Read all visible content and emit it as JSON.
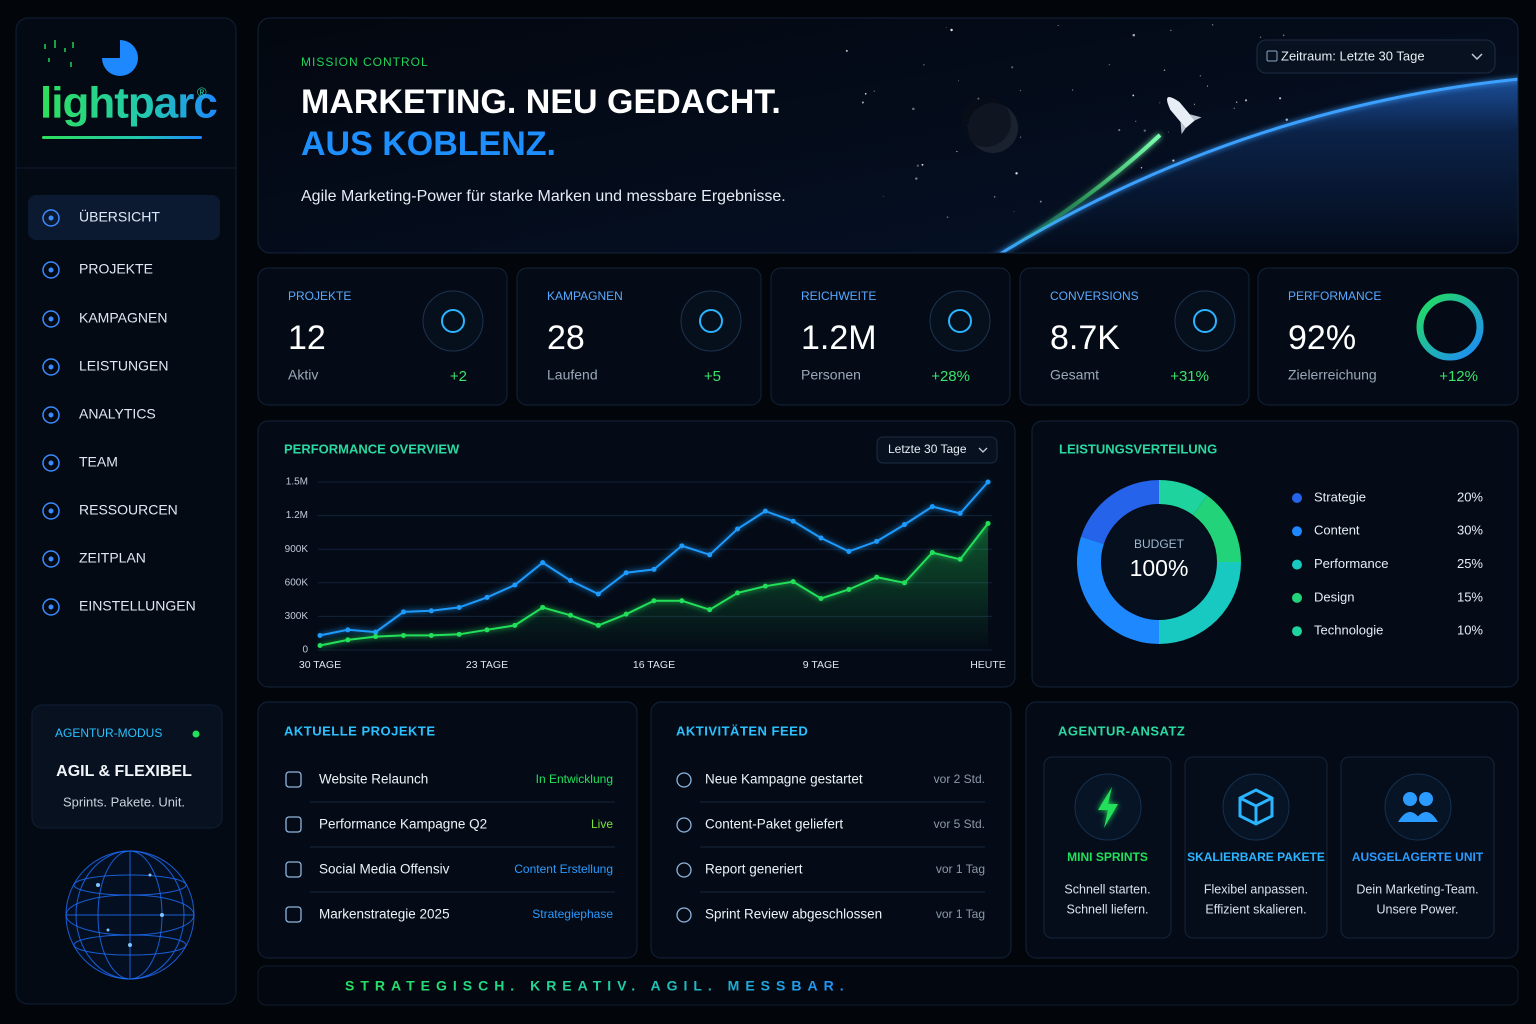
{
  "sidebar": {
    "logo": "lightparc",
    "logo_mark": "®",
    "nav": [
      "ÜBERSICHT",
      "PROJEKTE",
      "KAMPAGNEN",
      "LEISTUNGEN",
      "ANALYTICS",
      "TEAM",
      "RESSOURCEN",
      "ZEITPLAN",
      "EINSTELLUNGEN"
    ],
    "mode": {
      "label": "AGENTUR-MODUS",
      "title": "AGIL & FLEXIBEL",
      "text": "Sprints. Pakete. Unit."
    }
  },
  "hero": {
    "eyebrow": "MISSION CONTROL",
    "title_line1": "MARKETING. NEU GEDACHT.",
    "title_line2": "AUS KOBLENZ.",
    "subtitle": "Agile Marketing-Power für starke Marken und messbare Ergebnisse.",
    "date_filter": "Zeitraum: Letzte 30 Tage"
  },
  "kpis": [
    {
      "label": "PROJEKTE",
      "value": "12",
      "caption": "Aktiv",
      "delta": "+2"
    },
    {
      "label": "KAMPAGNEN",
      "value": "28",
      "caption": "Laufend",
      "delta": "+5"
    },
    {
      "label": "REICHWEITE",
      "value": "1.2M",
      "caption": "Personen",
      "delta": "+28%"
    },
    {
      "label": "CONVERSIONS",
      "value": "8.7K",
      "caption": "Gesamt",
      "delta": "+31%"
    },
    {
      "label": "PERFORMANCE",
      "value": "92%",
      "caption": "Zielerreichung",
      "delta": "+12%"
    }
  ],
  "performance_chart": {
    "type": "line",
    "title": "PERFORMANCE OVERVIEW",
    "filter": "Letzte 30 Tage",
    "categories": [
      "30 TAGE",
      null,
      null,
      null,
      null,
      null,
      "23 TAGE",
      null,
      null,
      null,
      null,
      null,
      "16 TAGE",
      null,
      null,
      null,
      null,
      null,
      "9 TAGE",
      null,
      null,
      null,
      null,
      null,
      "HEUTE"
    ],
    "series": [
      {
        "color": "#1e9bff",
        "values": [
          130000,
          180000,
          160000,
          340000,
          350000,
          380000,
          470000,
          580000,
          780000,
          620000,
          500000,
          690000,
          720000,
          930000,
          850000,
          1080000,
          1240000,
          1150000,
          1000000,
          880000,
          970000,
          1120000,
          1280000,
          1220000,
          1500000
        ]
      },
      {
        "color": "#22e05a",
        "values": [
          40000,
          90000,
          120000,
          130000,
          130000,
          140000,
          180000,
          220000,
          380000,
          310000,
          220000,
          320000,
          440000,
          440000,
          360000,
          510000,
          570000,
          610000,
          460000,
          540000,
          650000,
          600000,
          870000,
          810000,
          1130000
        ]
      }
    ],
    "ylim": [
      0,
      1500000
    ],
    "yticks": [
      0,
      {
        "value": 300000,
        "label": "300K"
      },
      {
        "value": 600000,
        "label": "600K"
      },
      {
        "value": 900000,
        "label": "900K"
      },
      {
        "value": 1200000,
        "label": "1.2M"
      },
      {
        "value": 1500000,
        "label": "1.5M"
      }
    ],
    "grid": true
  },
  "distribution_chart": {
    "type": "donut",
    "title": "LEISTUNGSVERTEILUNG",
    "center_label": "BUDGET",
    "center_value": "100%",
    "categories": [
      "Strategie",
      "Content",
      "Performance",
      "Design",
      "Technologie"
    ],
    "values": [
      20,
      30,
      25,
      15,
      10
    ],
    "value_labels": [
      "20%",
      "30%",
      "25%",
      "15%",
      "10%"
    ],
    "colors": [
      "#2563eb",
      "#1e88ff",
      "#17c9c0",
      "#22d37a",
      "#1fd39e"
    ]
  },
  "projects": {
    "title": "AKTUELLE PROJEKTE",
    "rows": [
      {
        "name": "Website Relaunch",
        "status": "In Entwicklung"
      },
      {
        "name": "Performance Kampagne Q2",
        "status": "Live"
      },
      {
        "name": "Social Media Offensiv",
        "status": "Content Erstellung"
      },
      {
        "name": "Markenstrategie 2025",
        "status": "Strategiephase"
      }
    ]
  },
  "activities": {
    "title": "AKTIVITÄTEN FEED",
    "rows": [
      {
        "text": "Neue Kampagne gestartet",
        "time": "vor 2 Std."
      },
      {
        "text": "Content-Paket geliefert",
        "time": "vor 5 Std."
      },
      {
        "text": "Report generiert",
        "time": "vor 1 Tag"
      },
      {
        "text": "Sprint Review abgeschlossen",
        "time": "vor 1 Tag"
      }
    ]
  },
  "approach": {
    "title": "AGENTUR-ANSATZ",
    "cards": [
      {
        "title": "MINI SPRINTS",
        "text_line1": "Schnell starten.",
        "text_line2": "Schnell liefern."
      },
      {
        "title": "SKALIERBARE PAKETE",
        "text_line1": "Flexibel anpassen.",
        "text_line2": "Effizient skalieren."
      },
      {
        "title": "AUSGELAGERTE UNIT",
        "text_line1": "Dein Marketing-Team.",
        "text_line2": "Unsere Power."
      }
    ]
  },
  "footer": {
    "tagline": "STRATEGISCH. KREATIV. AGIL. MESSBAR."
  }
}
